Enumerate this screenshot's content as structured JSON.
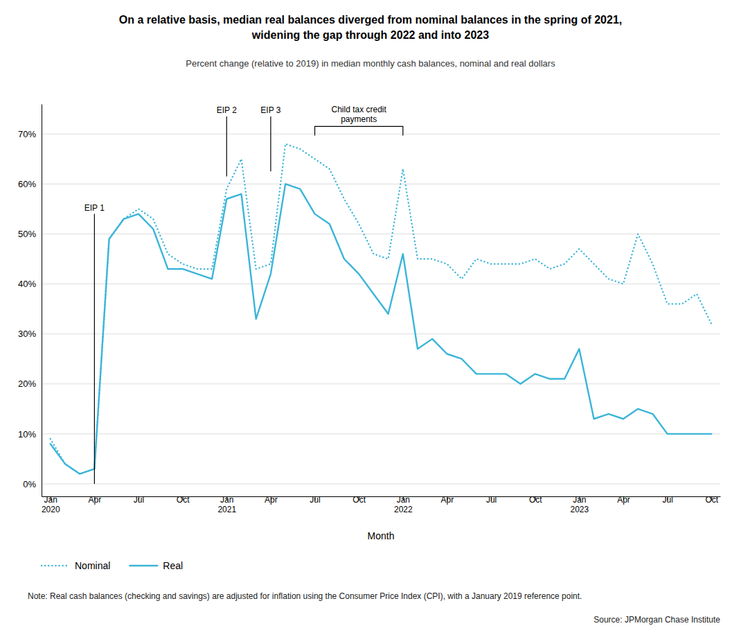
{
  "chart_data": {
    "type": "line",
    "title": "On a relative basis, median real balances diverged from nominal balances in the spring of 2021,\nwidening the gap through 2022 and into 2023",
    "subtitle": "Percent change (relative to 2019) in median monthly cash balances, nominal and real dollars",
    "x_label": "Month",
    "note": "Note: Real cash balances (checking and savings) are adjusted for inflation using the Consumer Price Index (CPI), with a January 2019 reference point.",
    "source": "Source: JPMorgan Chase Institute",
    "categories": [
      "Jan\n2020",
      null,
      null,
      "Apr",
      null,
      null,
      "Jul",
      null,
      null,
      "Oct",
      null,
      null,
      "Jan\n2021",
      null,
      null,
      "Apr",
      null,
      null,
      "Jul",
      null,
      null,
      "Oct",
      null,
      null,
      "Jan\n2022",
      null,
      null,
      "Apr",
      null,
      null,
      "Jul",
      null,
      null,
      "Oct",
      null,
      null,
      "Jan\n2023",
      null,
      null,
      "Apr",
      null,
      null,
      "Jul",
      null,
      null,
      "Oct"
    ],
    "series": [
      {
        "name": "Nominal",
        "color": "#3ab5d9",
        "line_style": "dotted",
        "values": [
          0.09,
          0.04,
          0.02,
          0.03,
          0.49,
          0.53,
          0.55,
          0.53,
          0.46,
          0.44,
          0.43,
          0.43,
          0.59,
          0.65,
          0.43,
          0.44,
          0.68,
          0.67,
          0.65,
          0.63,
          0.57,
          0.52,
          0.46,
          0.45,
          0.63,
          0.45,
          0.45,
          0.44,
          0.41,
          0.45,
          0.44,
          0.44,
          0.44,
          0.45,
          0.43,
          0.44,
          0.47,
          0.44,
          0.41,
          0.4,
          0.5,
          0.44,
          0.36,
          0.36,
          0.38,
          0.32
        ]
      },
      {
        "name": "Real",
        "color": "#3ab5d9",
        "line_style": "solid",
        "values": [
          0.08,
          0.04,
          0.02,
          0.03,
          0.49,
          0.53,
          0.54,
          0.51,
          0.43,
          0.43,
          0.42,
          0.41,
          0.57,
          0.58,
          0.33,
          0.42,
          0.6,
          0.59,
          0.54,
          0.52,
          0.45,
          0.42,
          0.38,
          0.34,
          0.46,
          0.27,
          0.29,
          0.26,
          0.25,
          0.22,
          0.22,
          0.22,
          0.2,
          0.22,
          0.21,
          0.21,
          0.27,
          0.13,
          0.14,
          0.13,
          0.15,
          0.14,
          0.1,
          0.1,
          0.1,
          0.1
        ]
      }
    ],
    "ylim": [
      -0.025,
      0.76
    ],
    "yticks": [
      {
        "value": 0.0,
        "label": "0%"
      },
      {
        "value": 0.1,
        "label": "10%"
      },
      {
        "value": 0.2,
        "label": "20%"
      },
      {
        "value": 0.3,
        "label": "30%"
      },
      {
        "value": 0.4,
        "label": "40%"
      },
      {
        "value": 0.5,
        "label": "50%"
      },
      {
        "value": 0.6,
        "label": "60%"
      },
      {
        "value": 0.7,
        "label": "70%"
      }
    ],
    "grid": true,
    "legend": "bottom",
    "annotations": [
      {
        "text": "EIP 1",
        "x": 3,
        "y0": 0.0,
        "y1": 0.54
      },
      {
        "text": "EIP 2",
        "x": 12,
        "y0": 0.615,
        "y1": 0.735
      },
      {
        "text": "EIP 3",
        "x": 15,
        "y0": 0.625,
        "y1": 0.735
      },
      {
        "text": "Child tax credit\npayments",
        "x0": 18,
        "x1": 24,
        "y": 0.715,
        "tick": 0.018
      }
    ]
  }
}
